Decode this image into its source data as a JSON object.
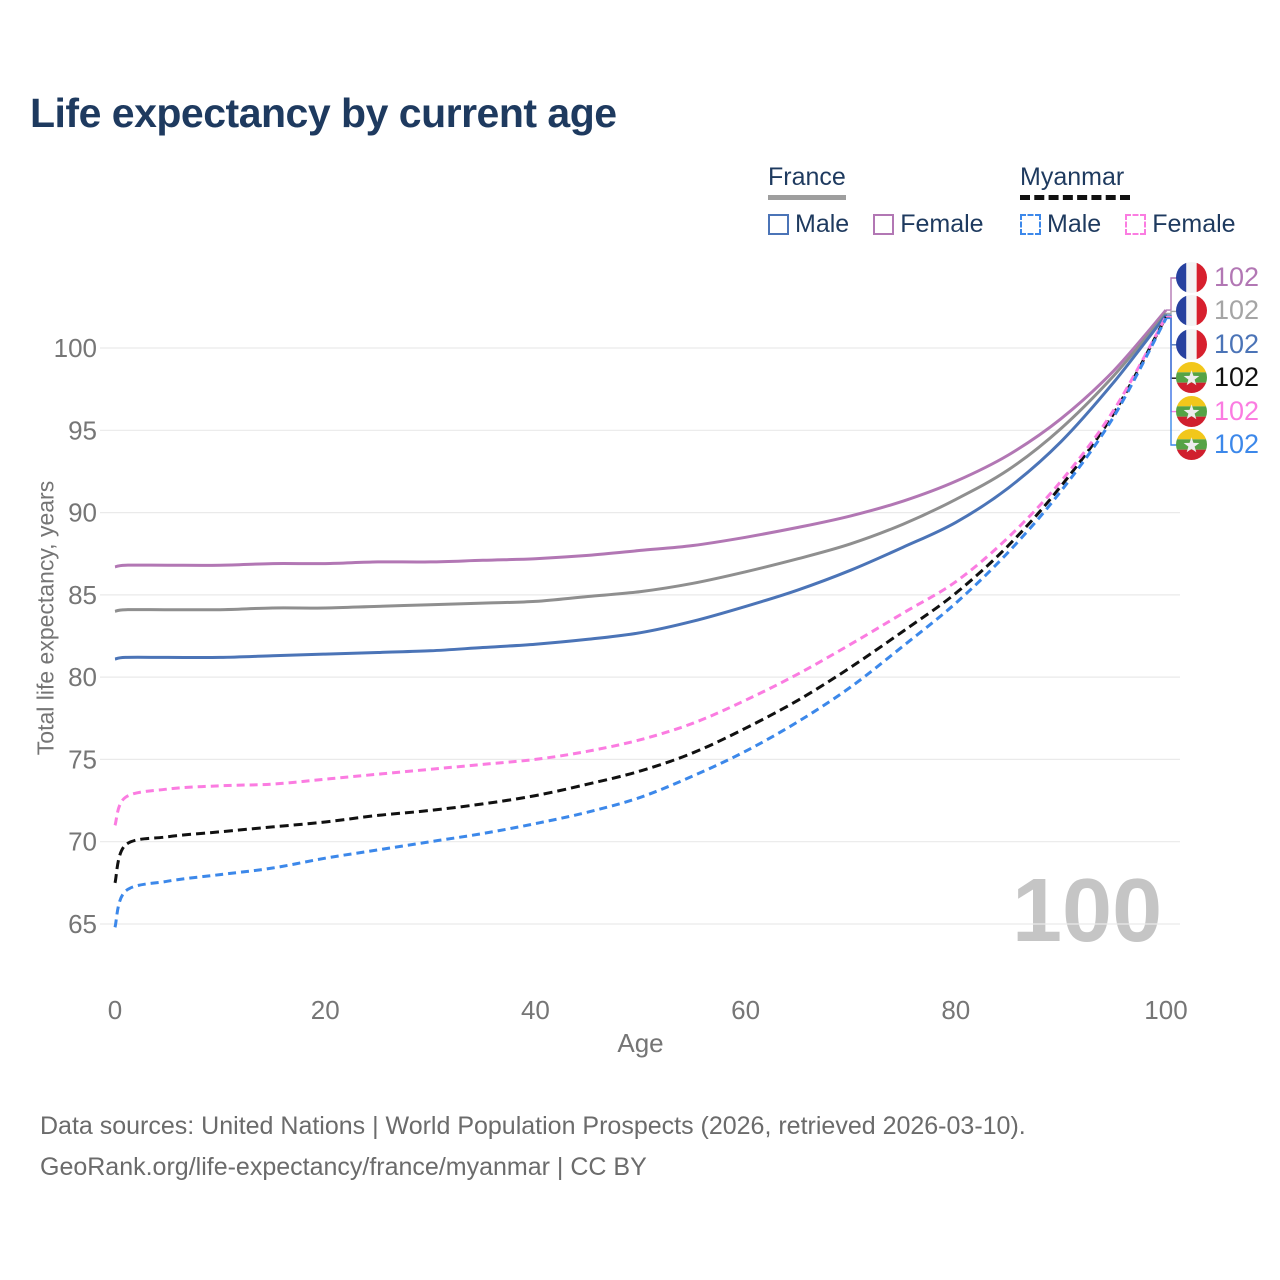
{
  "title": "Life expectancy by current age",
  "legend": {
    "groups": [
      {
        "name": "France",
        "line_style": "solid",
        "underline_color": "#9e9e9e",
        "items": [
          {
            "label": "Male",
            "color": "#4b74b7"
          },
          {
            "label": "Female",
            "color": "#b277b4"
          }
        ]
      },
      {
        "name": "Myanmar",
        "line_style": "dashed",
        "underline_color": "#111111",
        "items": [
          {
            "label": "Male",
            "color": "#3c88ea"
          },
          {
            "label": "Female",
            "color": "#fb7ce1"
          }
        ]
      }
    ]
  },
  "chart_data": {
    "type": "line",
    "title": "Life expectancy by current age",
    "xlabel": "Age",
    "ylabel": "Total life expectancy, years",
    "xlim": [
      0,
      100
    ],
    "ylim": [
      63,
      103
    ],
    "xticks": [
      0,
      20,
      40,
      60,
      80,
      100
    ],
    "yticks": [
      65,
      70,
      75,
      80,
      85,
      90,
      95,
      100
    ],
    "grid": "horizontal",
    "legend_position": "top-right",
    "watermark": "100",
    "x": [
      0,
      1,
      5,
      10,
      15,
      20,
      25,
      30,
      35,
      40,
      45,
      50,
      55,
      60,
      65,
      70,
      75,
      80,
      85,
      90,
      95,
      100
    ],
    "series": [
      {
        "id": "france-female",
        "name": "France Female",
        "country": "France",
        "sex": "Female",
        "color": "#b277b4",
        "dash": null,
        "values": [
          86.7,
          86.8,
          86.8,
          86.8,
          86.9,
          86.9,
          87.0,
          87.0,
          87.1,
          87.2,
          87.4,
          87.7,
          88.0,
          88.5,
          89.1,
          89.8,
          90.7,
          91.9,
          93.5,
          95.7,
          98.6,
          102.3
        ]
      },
      {
        "id": "france-both",
        "name": "France Both sexes",
        "country": "France",
        "sex": "Both",
        "color": "#8f8f8f",
        "dash": null,
        "values": [
          84.0,
          84.1,
          84.1,
          84.1,
          84.2,
          84.2,
          84.3,
          84.4,
          84.5,
          84.6,
          84.9,
          85.2,
          85.7,
          86.4,
          87.2,
          88.1,
          89.3,
          90.8,
          92.6,
          95.1,
          98.3,
          102.1
        ]
      },
      {
        "id": "france-male",
        "name": "France Male",
        "country": "France",
        "sex": "Male",
        "color": "#4b74b7",
        "dash": null,
        "values": [
          81.1,
          81.2,
          81.2,
          81.2,
          81.3,
          81.4,
          81.5,
          81.6,
          81.8,
          82.0,
          82.3,
          82.7,
          83.4,
          84.3,
          85.3,
          86.5,
          87.9,
          89.4,
          91.5,
          94.3,
          97.9,
          102.0
        ]
      },
      {
        "id": "myanmar-both",
        "name": "Myanmar Both sexes",
        "country": "Myanmar",
        "sex": "Both",
        "color": "#111111",
        "dash": "9 5",
        "values": [
          67.5,
          69.8,
          70.3,
          70.6,
          70.9,
          71.2,
          71.6,
          71.9,
          72.3,
          72.8,
          73.5,
          74.3,
          75.4,
          76.9,
          78.6,
          80.6,
          82.8,
          85.1,
          88.0,
          91.6,
          96.0,
          101.88
        ]
      },
      {
        "id": "myanmar-female",
        "name": "Myanmar Female",
        "country": "Myanmar",
        "sex": "Female",
        "color": "#fb7ce1",
        "dash": "8 5",
        "values": [
          71.0,
          72.7,
          73.2,
          73.4,
          73.5,
          73.8,
          74.1,
          74.4,
          74.7,
          75.0,
          75.5,
          76.2,
          77.2,
          78.6,
          80.2,
          82.0,
          83.9,
          85.8,
          88.5,
          91.9,
          96.2,
          101.9
        ]
      },
      {
        "id": "myanmar-male",
        "name": "Myanmar Male",
        "country": "Myanmar",
        "sex": "Male",
        "color": "#3c88ea",
        "dash": "8 5",
        "values": [
          64.8,
          67.0,
          67.6,
          68.0,
          68.4,
          69.0,
          69.5,
          70.0,
          70.5,
          71.1,
          71.8,
          72.7,
          74.0,
          75.5,
          77.3,
          79.4,
          81.9,
          84.5,
          87.6,
          91.3,
          95.8,
          101.8
        ]
      }
    ]
  },
  "end_labels": [
    {
      "flag": "france",
      "value": "102",
      "color": "#b277b4"
    },
    {
      "flag": "france",
      "value": "102",
      "color": "#a5a5a5"
    },
    {
      "flag": "france",
      "value": "102",
      "color": "#4b74b7"
    },
    {
      "flag": "myanmar",
      "value": "102",
      "color": "#111111"
    },
    {
      "flag": "myanmar",
      "value": "102",
      "color": "#fb7ce1"
    },
    {
      "flag": "myanmar",
      "value": "102",
      "color": "#3c88ea"
    }
  ],
  "footer": {
    "line1": "Data sources: United Nations | World Population Prospects (2026, retrieved 2026-03-10).",
    "line2": "GeoRank.org/life-expectancy/france/myanmar | CC BY"
  }
}
